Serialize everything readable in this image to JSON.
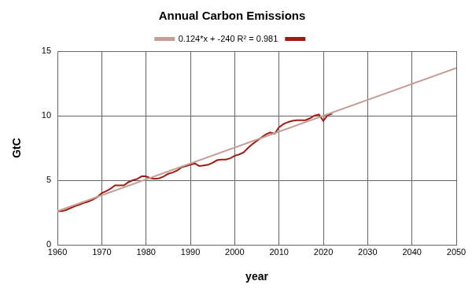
{
  "chart_data": {
    "type": "line",
    "title": "Annual Carbon Emissions",
    "x_label": "year",
    "y_label": "GtC",
    "series": [
      {
        "name": null,
        "color": "#a01c12",
        "x": [
          1960,
          1961,
          1962,
          1963,
          1964,
          1965,
          1966,
          1967,
          1968,
          1969,
          1970,
          1971,
          1972,
          1973,
          1974,
          1975,
          1976,
          1977,
          1978,
          1979,
          1980,
          1981,
          1982,
          1983,
          1984,
          1985,
          1986,
          1987,
          1988,
          1989,
          1990,
          1991,
          1992,
          1993,
          1994,
          1995,
          1996,
          1997,
          1998,
          1999,
          2000,
          2001,
          2002,
          2003,
          2004,
          2005,
          2006,
          2007,
          2008,
          2009,
          2010,
          2011,
          2012,
          2013,
          2014,
          2015,
          2016,
          2017,
          2018,
          2019,
          2020,
          2021,
          2022
        ],
        "values": [
          2.6,
          2.6,
          2.7,
          2.85,
          3.0,
          3.1,
          3.25,
          3.35,
          3.5,
          3.7,
          4.0,
          4.15,
          4.35,
          4.6,
          4.6,
          4.6,
          4.85,
          5.0,
          5.1,
          5.3,
          5.3,
          5.15,
          5.1,
          5.15,
          5.3,
          5.5,
          5.6,
          5.75,
          6.0,
          6.1,
          6.2,
          6.3,
          6.1,
          6.15,
          6.2,
          6.35,
          6.55,
          6.6,
          6.6,
          6.7,
          6.9,
          7.0,
          7.15,
          7.5,
          7.8,
          8.05,
          8.3,
          8.55,
          8.7,
          8.6,
          9.1,
          9.35,
          9.5,
          9.6,
          9.65,
          9.65,
          9.65,
          9.8,
          10.0,
          10.1,
          9.6,
          10.05,
          10.15
        ]
      },
      {
        "name": "0.124*x + -240 R² = 0.981",
        "color": "#c49d97",
        "x": [
          1960,
          2050
        ],
        "values": [
          2.6,
          13.7
        ]
      }
    ],
    "xlim": [
      1960,
      2050
    ],
    "xticks": [
      1960,
      1970,
      1980,
      1990,
      2000,
      2010,
      2020,
      2030,
      2040,
      2050
    ],
    "ylim": [
      0,
      15
    ],
    "yticks": [
      0,
      5,
      10,
      15
    ],
    "grid": true,
    "legend": "top"
  }
}
